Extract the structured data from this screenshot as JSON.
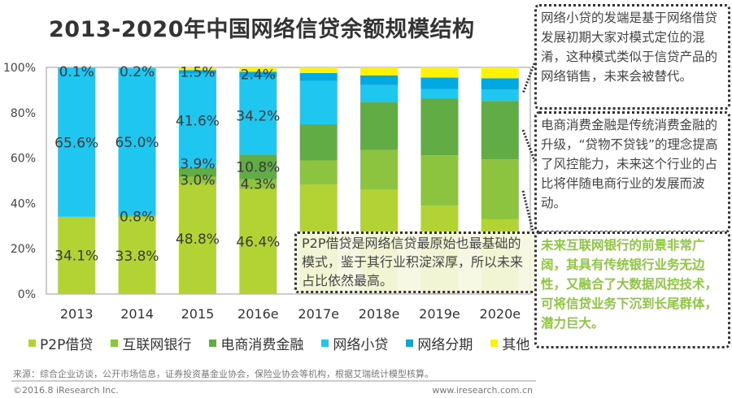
{
  "chart_data": {
    "type": "bar",
    "stacked": true,
    "title": "2013-2020年中国网络信贷余额规模结构",
    "categories": [
      "2013",
      "2014",
      "2015",
      "2016e",
      "2017e",
      "2018e",
      "2019e",
      "2020e"
    ],
    "ylim": [
      0,
      100
    ],
    "yticks": [
      "0%",
      "20%",
      "40%",
      "60%",
      "80%",
      "100%"
    ],
    "legend_position": "bottom",
    "series": [
      {
        "name": "P2P借贷",
        "color": "#b3d335",
        "values": [
          34.1,
          33.8,
          48.8,
          46.4,
          48.4,
          46.0,
          39.0,
          33.0
        ],
        "labels": [
          "34.1%",
          "33.8%",
          "48.8%",
          "46.4%",
          null,
          null,
          null,
          null
        ]
      },
      {
        "name": "互联网银行",
        "color": "#8cc43f",
        "values": [
          0,
          0.8,
          3.0,
          4.3,
          10.5,
          17.6,
          22.2,
          26.4
        ],
        "labels": [
          null,
          "0.8%",
          "3.0%",
          "4.3%",
          null,
          null,
          null,
          null
        ]
      },
      {
        "name": "电商消费金融",
        "color": "#62ac46",
        "values": [
          0,
          0,
          3.9,
          10.8,
          16.0,
          21.0,
          25.0,
          25.8
        ],
        "labels": [
          null,
          null,
          "3.9%",
          "10.8%",
          null,
          null,
          null,
          null
        ]
      },
      {
        "name": "网络小贷",
        "color": "#1ec6f0",
        "values": [
          65.6,
          65.0,
          41.6,
          34.2,
          19.1,
          7.6,
          4.3,
          5.0
        ],
        "labels": [
          "65.6%",
          "65.0%",
          "41.6%",
          "34.2%",
          null,
          null,
          null,
          null
        ]
      },
      {
        "name": "网络分期",
        "color": "#00a9e0",
        "values": [
          0.2,
          0.2,
          1.5,
          2.4,
          3.5,
          4.3,
          5.0,
          5.0
        ],
        "labels": [
          null,
          null,
          "1.5%",
          "2.4%",
          null,
          null,
          null,
          null
        ]
      },
      {
        "name": "其他",
        "color": "#fff200",
        "values": [
          0.1,
          0.2,
          1.2,
          1.9,
          2.5,
          3.5,
          4.5,
          4.8
        ],
        "labels": [
          "0.1%",
          "0.2%",
          null,
          null,
          null,
          null,
          null,
          null
        ]
      }
    ]
  },
  "notes": {
    "p2p": "P2P借贷是网络信贷最原始也最基础的模式，鉴于其行业积淀深厚，所以未来占比依然最高。",
    "xiaodai": "网络小贷的发端是基于网络借贷发展初期大家对模式定位的混淆，这种模式类似于信贷产品的网络销售，未来会被替代。",
    "ecommerce": "电商消费金融是传统消费金融的升级，“贷物不贷钱”的理念提高了风控能力，未来这个行业的占比将伴随电商行业的发展而波动。",
    "bank": "未来互联网银行的前景非常广阔，其具有传统银行业务无边性，又融合了大数据风控技术，可将信贷业务下沉到长尾群体，潜力巨大。"
  },
  "footer": {
    "source": "来源：综合企业访谈，公开市场信息，证券投资基金业协会，保险业协会等机构，根据艾瑞统计模型核算。",
    "copyright": "©2016.8 iResearch Inc.",
    "website": "www.iresearch.com.cn"
  }
}
